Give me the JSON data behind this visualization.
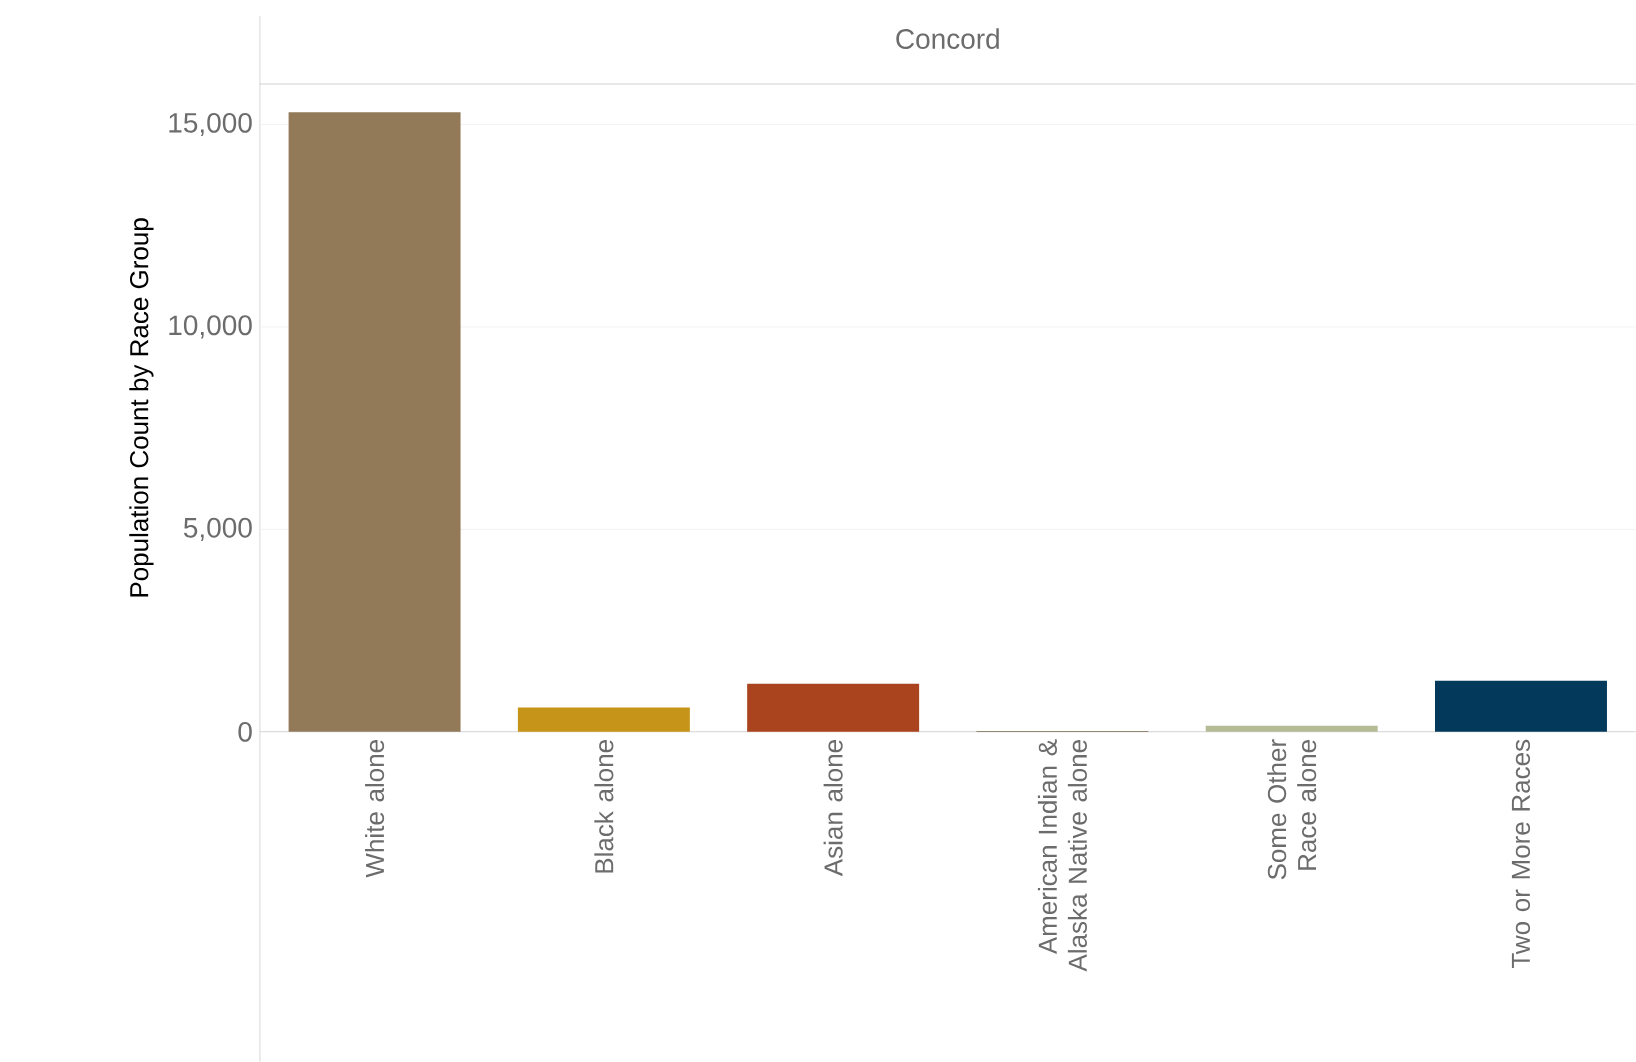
{
  "chart_data": {
    "type": "bar",
    "title": "Concord",
    "ylabel": "Population Count by Race Group",
    "categories": [
      "White alone",
      "Black alone",
      "Asian alone",
      "American Indian & Alaska Native alone",
      "Some Other Race alone",
      "Two or More Races"
    ],
    "values": [
      15300,
      600,
      1190,
      20,
      150,
      1260
    ],
    "colors": [
      "#927958",
      "#c59418",
      "#a9441e",
      "#7a6a4f",
      "#b5bb94",
      "#03395a"
    ],
    "ylim": [
      0,
      16000
    ],
    "yticks": [
      0,
      {
        "value": 5000,
        "label": "5,000"
      },
      {
        "value": 10000,
        "label": "10,000"
      },
      {
        "value": 15000,
        "label": "15,000"
      }
    ],
    "grid": "y"
  }
}
